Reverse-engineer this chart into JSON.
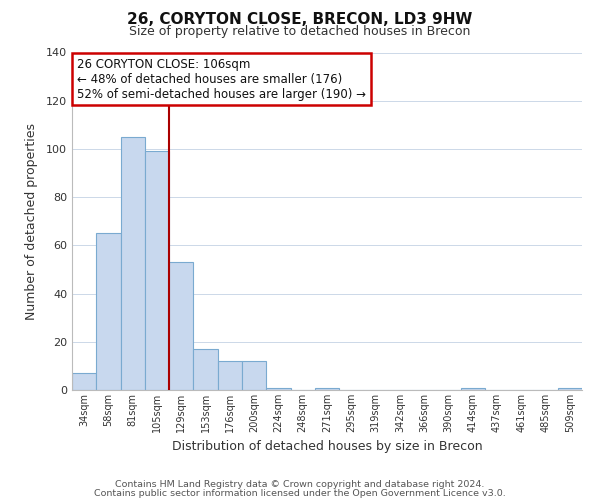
{
  "title": "26, CORYTON CLOSE, BRECON, LD3 9HW",
  "subtitle": "Size of property relative to detached houses in Brecon",
  "xlabel": "Distribution of detached houses by size in Brecon",
  "ylabel": "Number of detached properties",
  "bar_labels": [
    "34sqm",
    "58sqm",
    "81sqm",
    "105sqm",
    "129sqm",
    "153sqm",
    "176sqm",
    "200sqm",
    "224sqm",
    "248sqm",
    "271sqm",
    "295sqm",
    "319sqm",
    "342sqm",
    "366sqm",
    "390sqm",
    "414sqm",
    "437sqm",
    "461sqm",
    "485sqm",
    "509sqm"
  ],
  "bar_values": [
    7,
    65,
    105,
    99,
    53,
    17,
    12,
    12,
    1,
    0,
    1,
    0,
    0,
    0,
    0,
    0,
    1,
    0,
    0,
    0,
    1
  ],
  "bar_color": "#c8d8ee",
  "bar_edge_color": "#7aaad0",
  "vline_x_index": 3,
  "vline_color": "#aa0000",
  "ylim": [
    0,
    140
  ],
  "yticks": [
    0,
    20,
    40,
    60,
    80,
    100,
    120,
    140
  ],
  "annotation_title": "26 CORYTON CLOSE: 106sqm",
  "annotation_line1": "← 48% of detached houses are smaller (176)",
  "annotation_line2": "52% of semi-detached houses are larger (190) →",
  "annotation_box_color": "#ffffff",
  "annotation_box_edge": "#cc0000",
  "footer_line1": "Contains HM Land Registry data © Crown copyright and database right 2024.",
  "footer_line2": "Contains public sector information licensed under the Open Government Licence v3.0.",
  "background_color": "#ffffff",
  "grid_color": "#ccd8e8"
}
